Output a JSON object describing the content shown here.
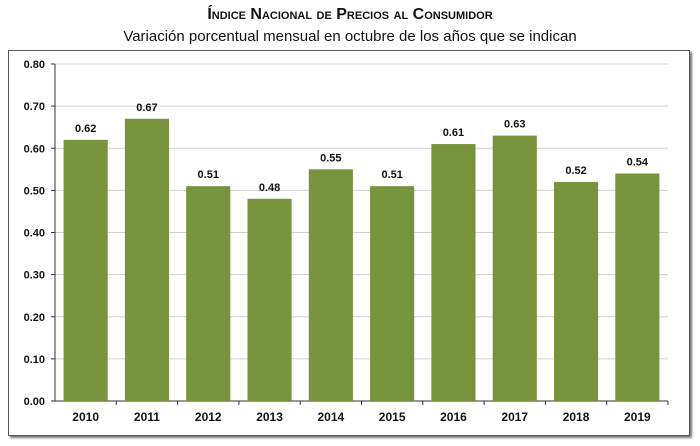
{
  "chart_data": {
    "type": "bar",
    "title": "Índice Nacional de Precios al Consumidor",
    "subtitle": "Variación porcentual mensual en octubre de los años que se indican",
    "categories": [
      "2010",
      "2011",
      "2012",
      "2013",
      "2014",
      "2015",
      "2016",
      "2017",
      "2018",
      "2019"
    ],
    "values": [
      0.62,
      0.67,
      0.51,
      0.48,
      0.55,
      0.51,
      0.61,
      0.63,
      0.52,
      0.54
    ],
    "data_labels": [
      "0.62",
      "0.67",
      "0.51",
      "0.48",
      "0.55",
      "0.51",
      "0.61",
      "0.63",
      "0.52",
      "0.54"
    ],
    "yticks": [
      "0.00",
      "0.10",
      "0.20",
      "0.30",
      "0.40",
      "0.50",
      "0.60",
      "0.70",
      "0.80"
    ],
    "ylim": [
      0,
      0.8
    ],
    "xlabel": "",
    "ylabel": "",
    "grid": true,
    "bar_color": "#77933c"
  }
}
